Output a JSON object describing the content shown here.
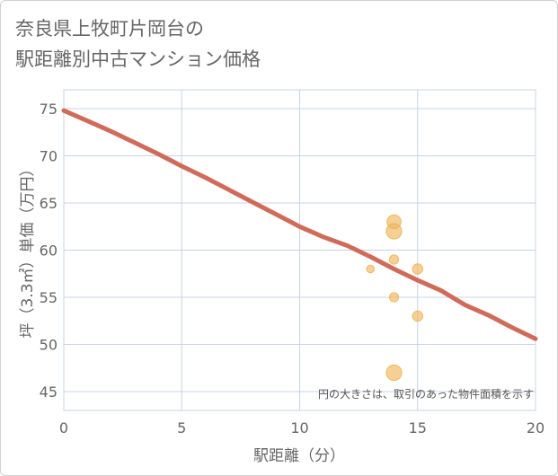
{
  "chart_data": {
    "type": "scatter",
    "title_lines": [
      "奈良県上牧町片岡台の",
      "駅距離別中古マンション価格"
    ],
    "xlabel": "駅距離（分）",
    "ylabel": "坪（3.3㎡）単価（万円）",
    "xlim": [
      0,
      20
    ],
    "ylim": [
      43,
      77
    ],
    "x_ticks": [
      0,
      5,
      10,
      15,
      20
    ],
    "y_ticks": [
      45,
      50,
      55,
      60,
      65,
      70,
      75
    ],
    "grid": true,
    "annotation": "円の大きさは、取引のあった物件面積を示す",
    "points": [
      {
        "x": 13,
        "y": 58,
        "size": 1
      },
      {
        "x": 14,
        "y": 63,
        "size": 4
      },
      {
        "x": 14,
        "y": 62,
        "size": 5
      },
      {
        "x": 14,
        "y": 59,
        "size": 1.5
      },
      {
        "x": 14,
        "y": 55,
        "size": 1.5
      },
      {
        "x": 14,
        "y": 47,
        "size": 5
      },
      {
        "x": 15,
        "y": 58,
        "size": 2
      },
      {
        "x": 15,
        "y": 53,
        "size": 2
      }
    ],
    "trend_line": {
      "x": [
        0,
        1,
        2,
        3,
        4,
        5,
        6,
        7,
        8,
        9,
        10,
        11,
        12,
        13,
        14,
        15,
        16,
        17,
        18,
        19,
        20
      ],
      "y": [
        74.8,
        73.7,
        72.6,
        71.4,
        70.2,
        68.9,
        67.7,
        66.4,
        65.1,
        63.8,
        62.5,
        61.4,
        60.5,
        59.3,
        58.0,
        56.8,
        55.7,
        54.2,
        53.1,
        51.8,
        50.6
      ]
    },
    "colors": {
      "bubble": "#f0b55a",
      "line": "#d06b5a",
      "grid": "#c8d4e6"
    }
  }
}
